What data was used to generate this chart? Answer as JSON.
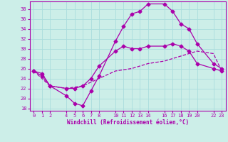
{
  "xlabel": "Windchill (Refroidissement éolien,°C)",
  "ylabel": "",
  "bg_color": "#cceee8",
  "grid_color": "#aadddd",
  "line_color": "#aa00aa",
  "ylim": [
    17.5,
    39.5
  ],
  "xlim": [
    -0.5,
    23.5
  ],
  "yticks": [
    18,
    20,
    22,
    24,
    26,
    28,
    30,
    32,
    34,
    36,
    38
  ],
  "xticks": [
    0,
    1,
    2,
    4,
    5,
    6,
    7,
    8,
    10,
    11,
    12,
    13,
    14,
    16,
    17,
    18,
    19,
    20,
    22,
    23
  ],
  "xticklabels": [
    "0",
    "1",
    "2",
    "4",
    "5",
    "6",
    "7",
    "8",
    "10",
    "11",
    "12",
    "13",
    "14",
    "16",
    "17",
    "18",
    "19",
    "20",
    "22",
    "23"
  ],
  "line1_x": [
    0,
    1,
    2,
    4,
    5,
    6,
    7,
    8,
    10,
    11,
    12,
    13,
    14,
    16,
    17,
    18,
    19,
    20,
    22,
    23
  ],
  "line1_y": [
    25.5,
    25.0,
    22.5,
    20.5,
    19.0,
    18.5,
    21.5,
    24.5,
    31.5,
    34.5,
    37.0,
    37.5,
    39.0,
    39.0,
    37.5,
    35.0,
    34.0,
    31.0,
    27.0,
    26.0
  ],
  "line2_x": [
    0,
    1,
    2,
    4,
    5,
    6,
    7,
    8,
    10,
    11,
    12,
    13,
    14,
    16,
    17,
    18,
    19,
    20,
    22,
    23
  ],
  "line2_y": [
    25.5,
    24.5,
    22.5,
    22.0,
    22.0,
    22.5,
    24.0,
    26.5,
    29.5,
    30.5,
    30.0,
    30.0,
    30.5,
    30.5,
    31.0,
    30.5,
    29.5,
    27.0,
    26.0,
    25.5
  ],
  "line3_x": [
    0,
    2,
    4,
    6,
    8,
    10,
    12,
    14,
    16,
    18,
    20,
    22,
    23
  ],
  "line3_y": [
    25.5,
    22.5,
    22.0,
    22.5,
    24.0,
    25.5,
    26.0,
    27.0,
    27.5,
    28.5,
    29.5,
    29.0,
    25.5
  ],
  "marker": "D",
  "markersize": 2.5,
  "linewidth": 0.9
}
